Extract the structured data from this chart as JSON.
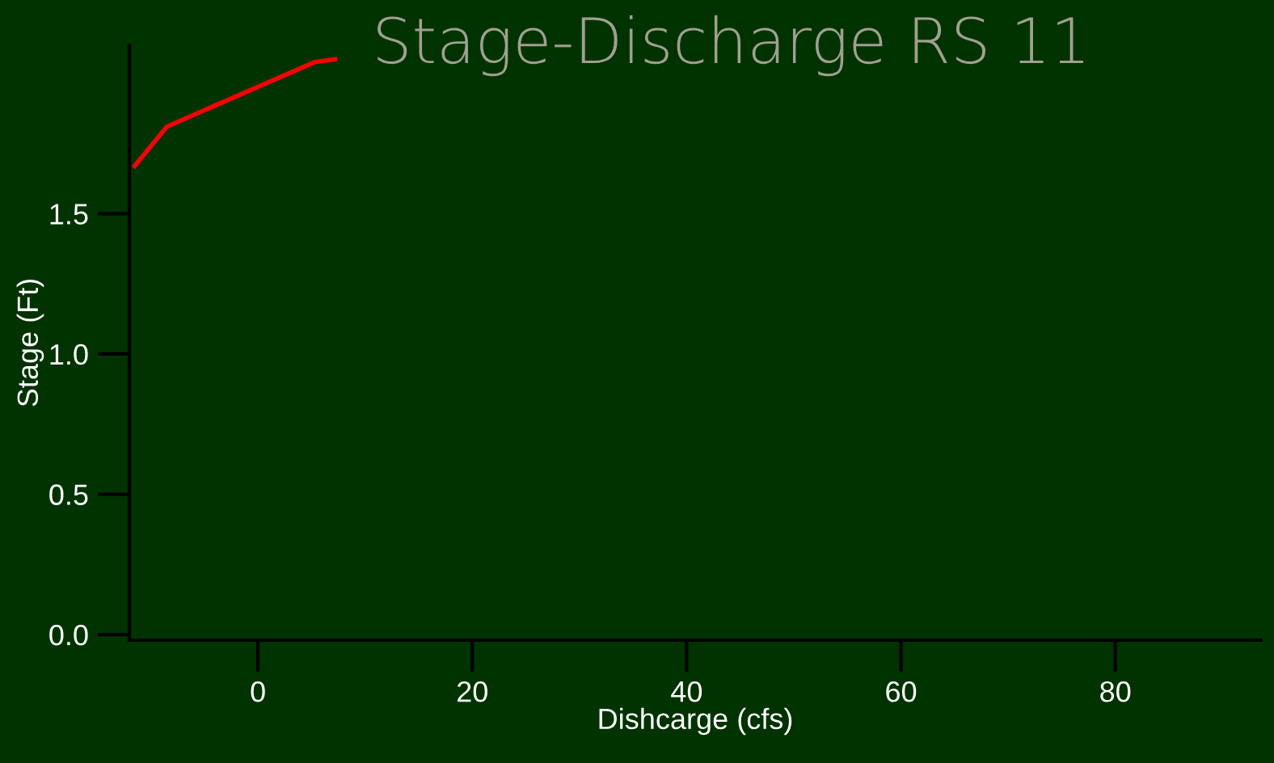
{
  "chart_data": {
    "type": "line",
    "title": "Stage-Discharge RS 11",
    "xlabel": "Dishcarge (cfs)",
    "ylabel": "Stage (Ft)",
    "x": [
      -11.5,
      -8.5,
      5.3,
      7.2
    ],
    "series": [
      {
        "color": "#ff0000",
        "values": [
          1.67,
          1.81,
          2.04,
          2.05
        ]
      }
    ],
    "xlim": [
      -12,
      93.6
    ],
    "ylim": [
      -0.02,
      2.1
    ],
    "xticks": [
      0,
      20,
      40,
      60,
      80
    ],
    "yticks": [
      {
        "value": 0,
        "label": "0.0"
      },
      {
        "value": 0.5,
        "label": "0.5"
      },
      {
        "value": 1,
        "label": "1.0"
      },
      {
        "value": 1.5,
        "label": "1.5"
      }
    ],
    "grid": false,
    "legend": false
  }
}
